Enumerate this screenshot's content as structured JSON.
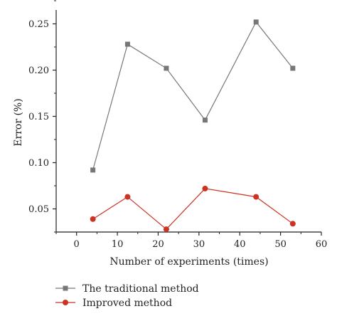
{
  "chart_data": {
    "type": "line",
    "xlabel": "Number of experiments (times)",
    "ylabel": "Error (%)",
    "xlim": [
      -5,
      60
    ],
    "ylim": [
      0.025,
      0.265
    ],
    "xticks": [
      0,
      10,
      20,
      30,
      40,
      50,
      60
    ],
    "yticks": [
      0.05,
      0.1,
      0.15,
      0.2,
      0.25
    ],
    "xtick_labels": [
      "0",
      "10",
      "20",
      "30",
      "40",
      "50",
      "60"
    ],
    "ytick_labels": [
      "0.05",
      "0.10",
      "0.15",
      "0.20",
      "0.25"
    ],
    "grid": false,
    "legend_position": "bottom-left",
    "series": [
      {
        "name": "The traditional method",
        "color": "#777777",
        "marker": "square",
        "x": [
          4,
          12.5,
          22,
          31.5,
          44,
          53
        ],
        "y": [
          0.092,
          0.228,
          0.202,
          0.146,
          0.252,
          0.202
        ]
      },
      {
        "name": "Improved method",
        "color": "#cc3322",
        "marker": "circle",
        "x": [
          4,
          12.5,
          22,
          31.5,
          44,
          53
        ],
        "y": [
          0.039,
          0.063,
          0.028,
          0.072,
          0.063,
          0.034
        ]
      }
    ]
  }
}
